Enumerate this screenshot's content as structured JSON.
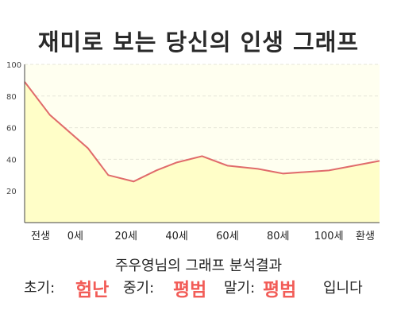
{
  "title": "재미로 보는 당신의 인생 그래프",
  "colors": {
    "line": "#e06b6b",
    "fill": "#fffec8",
    "plot_bg": "#fffff0",
    "grid": "#e6e6d8",
    "axis": "#444444",
    "highlight": "#f25c57"
  },
  "chart_data": {
    "type": "area",
    "title": "재미로 보는 당신의 인생 그래프",
    "ylim": [
      0,
      100
    ],
    "yticks": [
      20,
      40,
      60,
      80,
      100
    ],
    "grid": true,
    "xticks": [
      "전생",
      "0세",
      "20세",
      "40세",
      "60세",
      "80세",
      "100세",
      "환생"
    ],
    "x_range": [
      -20,
      120
    ],
    "series": [
      {
        "x": [
          -20,
          -10,
          5,
          13,
          23,
          32,
          40,
          50,
          60,
          72,
          82,
          100,
          120
        ],
        "y": [
          89,
          68,
          47,
          30,
          26,
          33,
          38,
          42,
          36,
          34,
          31,
          33,
          39
        ]
      }
    ]
  },
  "summary": {
    "heading": "주우영님의 그래프 분석결과",
    "early_label": "초기:",
    "early_value": "험난",
    "mid_label": "중기:",
    "mid_value": "평범",
    "late_label": "말기:",
    "late_value": "평범",
    "ending": "입니다"
  }
}
